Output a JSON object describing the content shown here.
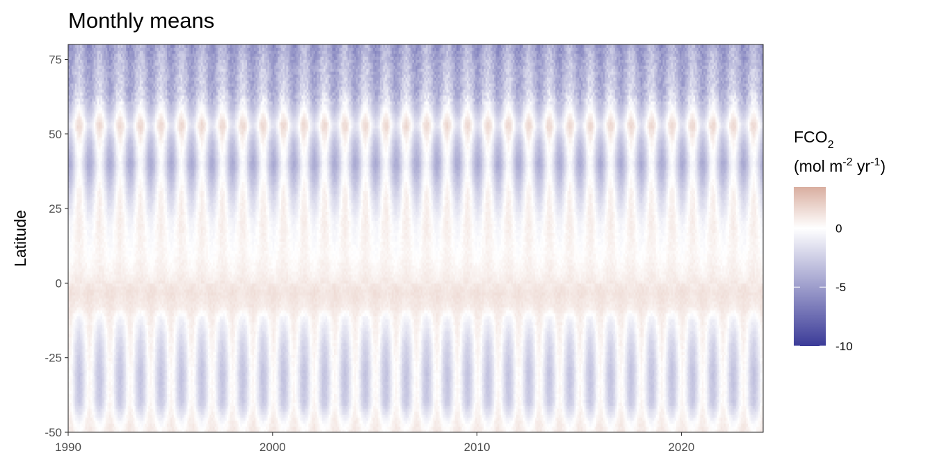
{
  "chart_data": {
    "type": "heatmap",
    "title": "Monthly means",
    "xlabel": "",
    "ylabel": "Latitude",
    "xlim": [
      1990,
      2024
    ],
    "ylim": [
      -50,
      80
    ],
    "x_ticks": [
      1990,
      2000,
      2010,
      2020
    ],
    "y_ticks": [
      75,
      50,
      25,
      0,
      -25,
      -50
    ],
    "x_tick_labels": [
      "1990",
      "2000",
      "2010",
      "2020"
    ],
    "y_tick_labels": [
      "75",
      "50",
      "25",
      "0",
      "-25",
      "-50"
    ],
    "legend": {
      "title_main": "FCO",
      "title_sub": "2",
      "unit_prefix": "(mol m",
      "unit_sup1": "-2",
      "unit_mid": " yr",
      "unit_sup2": "-1",
      "unit_suffix": ")",
      "placement": "right",
      "range": [
        -10,
        3.5
      ],
      "breaks": [
        0,
        -5,
        -10
      ],
      "break_labels": [
        "0",
        "-5",
        "-10"
      ]
    },
    "colors": {
      "low": "#3b3b98",
      "mid": "#ffffff",
      "high": "#d9aea0"
    },
    "grid": false,
    "time_step": "monthly",
    "latitude_profile": [
      {
        "lat": -50,
        "mean": 0.6,
        "amplitude": 0.4
      },
      {
        "lat": -47,
        "mean": 0.3,
        "amplitude": 0.6
      },
      {
        "lat": -40,
        "mean": -1.2,
        "amplitude": 1.6
      },
      {
        "lat": -30,
        "mean": -1.4,
        "amplitude": 1.7
      },
      {
        "lat": -20,
        "mean": -0.8,
        "amplitude": 1.4
      },
      {
        "lat": -12,
        "mean": 0.0,
        "amplitude": 0.8
      },
      {
        "lat": -8,
        "mean": 0.9,
        "amplitude": 0.2
      },
      {
        "lat": -3,
        "mean": 1.2,
        "amplitude": 0.15
      },
      {
        "lat": 3,
        "mean": 0.6,
        "amplitude": 0.2
      },
      {
        "lat": 10,
        "mean": 0.2,
        "amplitude": 0.3
      },
      {
        "lat": 20,
        "mean": 0.1,
        "amplitude": 0.7
      },
      {
        "lat": 30,
        "mean": -0.8,
        "amplitude": 1.5
      },
      {
        "lat": 40,
        "mean": -2.4,
        "amplitude": 2.0
      },
      {
        "lat": 48,
        "mean": -1.2,
        "amplitude": 1.8
      },
      {
        "lat": 53,
        "mean": 0.2,
        "amplitude": 1.6
      },
      {
        "lat": 58,
        "mean": -1.5,
        "amplitude": 1.6
      },
      {
        "lat": 65,
        "mean": -3.2,
        "amplitude": 1.4
      },
      {
        "lat": 72,
        "mean": -3.6,
        "amplitude": 1.2
      },
      {
        "lat": 80,
        "mean": -4.6,
        "amplitude": 1.2
      }
    ]
  }
}
